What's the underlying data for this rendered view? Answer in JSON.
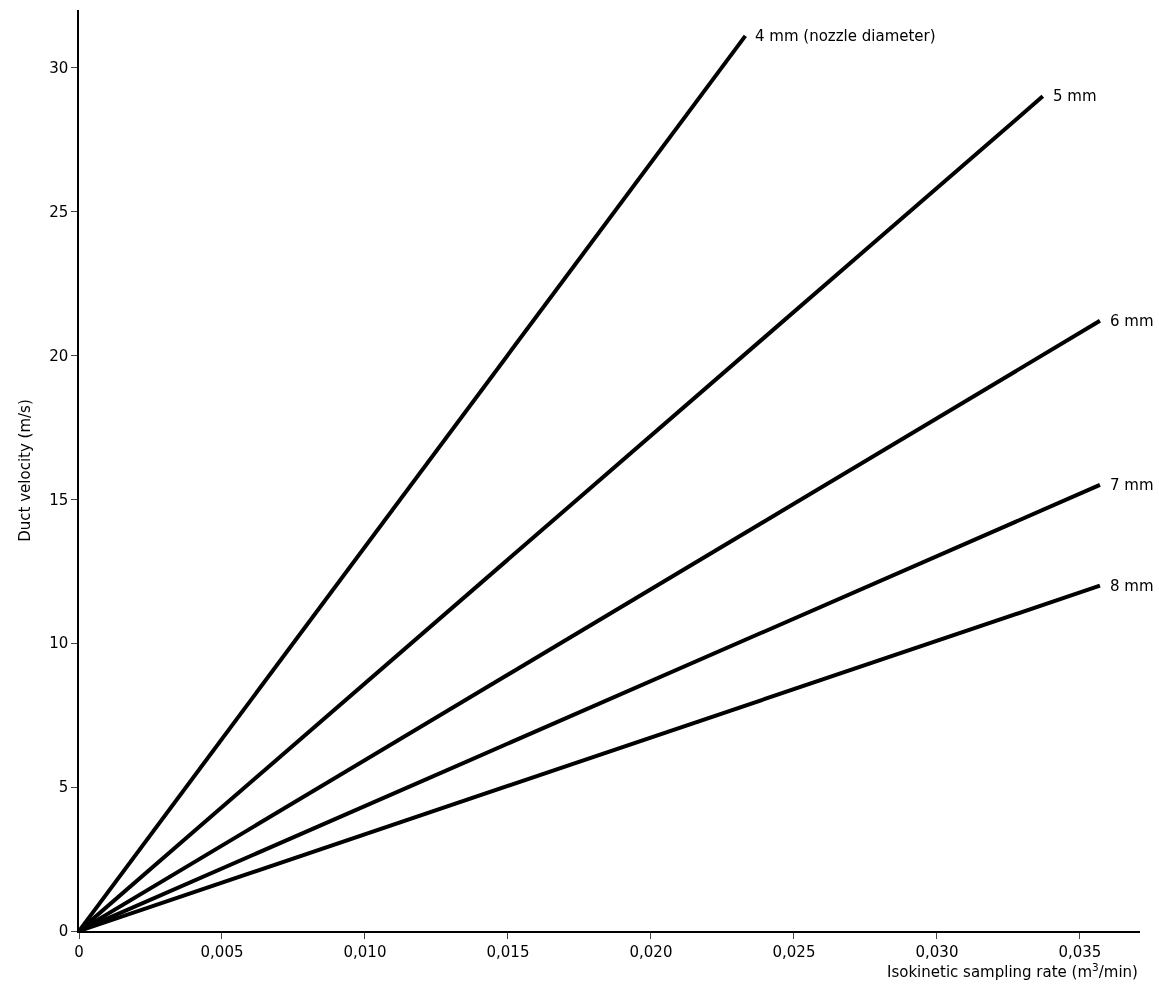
{
  "chart_data": {
    "type": "line",
    "xlabel": "Isokinetic sampling rate (m$^{3}$/min)",
    "ylabel": "Duct velocity (m/s)",
    "series": [
      {
        "name": "4 mm (nozzle diameter)",
        "color": "#000000",
        "x": [
          0,
          0.0233
        ],
        "values": [
          0,
          31.1
        ]
      },
      {
        "name": "5 mm",
        "color": "#000000",
        "x": [
          0,
          0.0337
        ],
        "values": [
          0,
          29.0
        ]
      },
      {
        "name": "6 mm",
        "color": "#000000",
        "x": [
          0,
          0.0357
        ],
        "values": [
          0,
          21.2
        ]
      },
      {
        "name": "7 mm",
        "color": "#000000",
        "x": [
          0,
          0.0357
        ],
        "values": [
          0,
          15.5
        ]
      },
      {
        "name": "8 mm",
        "color": "#000000",
        "x": [
          0,
          0.0357
        ],
        "values": [
          0,
          12.0
        ]
      }
    ],
    "xlim": [
      0,
      0.0371
    ],
    "ylim": [
      0,
      32
    ],
    "xticks": [
      0,
      {
        "value": 0.005,
        "label": "0,005"
      },
      {
        "value": 0.01,
        "label": "0,010"
      },
      {
        "value": 0.015,
        "label": "0,015"
      },
      {
        "value": 0.02,
        "label": "0,020"
      },
      {
        "value": 0.025,
        "label": "0,025"
      },
      {
        "value": 0.03,
        "label": "0,030"
      },
      {
        "value": 0.035,
        "label": "0,035"
      }
    ],
    "yticks": [
      0,
      5,
      10,
      15,
      20,
      25,
      30
    ],
    "legend": false,
    "marker": "none",
    "line_style": "solid"
  }
}
